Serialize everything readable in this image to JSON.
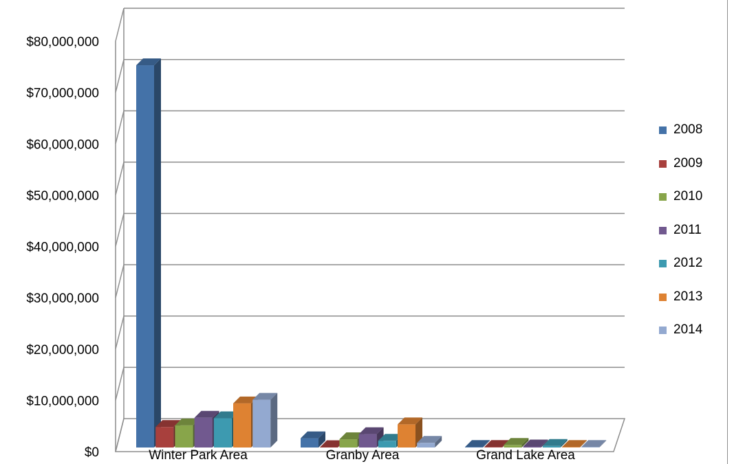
{
  "chart_data": {
    "type": "bar",
    "title": "",
    "xlabel": "",
    "ylabel": "",
    "categories": [
      "Winter Park Area",
      "Granby Area",
      "Grand Lake Area"
    ],
    "ylim": [
      0,
      80000000
    ],
    "y_ticks": [
      "$0",
      "$10,000,000",
      "$20,000,000",
      "$30,000,000",
      "$40,000,000",
      "$50,000,000",
      "$60,000,000",
      "$70,000,000",
      "$80,000,000"
    ],
    "grid": true,
    "legend_position": "right",
    "style": "3d-clustered-column",
    "series": [
      {
        "name": "2008",
        "color": "#4472A8",
        "values": [
          74500000,
          1800000,
          100000
        ]
      },
      {
        "name": "2009",
        "color": "#A8403D",
        "values": [
          4000000,
          0,
          100000
        ]
      },
      {
        "name": "2010",
        "color": "#88A54A",
        "values": [
          4300000,
          1600000,
          500000
        ]
      },
      {
        "name": "2011",
        "color": "#71598F",
        "values": [
          5800000,
          2600000,
          200000
        ]
      },
      {
        "name": "2012",
        "color": "#3D9AB0",
        "values": [
          5700000,
          1300000,
          300000
        ]
      },
      {
        "name": "2013",
        "color": "#DE8232",
        "values": [
          8600000,
          4500000,
          100000
        ]
      },
      {
        "name": "2014",
        "color": "#93A9D0",
        "values": [
          9300000,
          900000,
          100000
        ]
      }
    ]
  }
}
